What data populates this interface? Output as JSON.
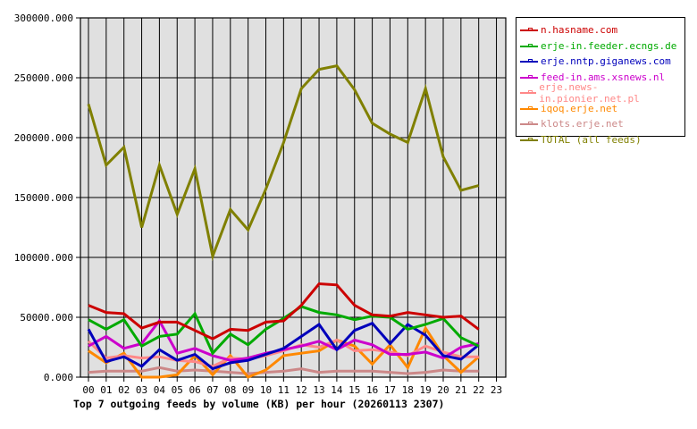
{
  "chart_data": {
    "type": "line",
    "title": "Top 7 outgoing feeds by volume (KB) per hour (20260113 2307)",
    "xlabel": "",
    "ylabel": "",
    "ylim": [
      0,
      300000
    ],
    "yticks": [
      "0.000",
      "50000.000",
      "100000.000",
      "150000.000",
      "200000.000",
      "250000.000",
      "300000.000"
    ],
    "categories": [
      "00",
      "01",
      "02",
      "03",
      "04",
      "05",
      "06",
      "07",
      "08",
      "09",
      "10",
      "11",
      "12",
      "13",
      "14",
      "15",
      "16",
      "17",
      "18",
      "19",
      "20",
      "21",
      "22",
      "23"
    ],
    "grid": true,
    "legend_position": "right",
    "series": [
      {
        "name": "n.hasname.com",
        "color": "#cc0000",
        "values": [
          60000,
          54000,
          53000,
          41000,
          46000,
          46000,
          39000,
          32000,
          40000,
          39000,
          46000,
          47000,
          60000,
          78000,
          77000,
          60000,
          52000,
          51000,
          54000,
          52000,
          50000,
          51000,
          40000
        ]
      },
      {
        "name": "erje-in.feeder.ecngs.de",
        "color": "#00aa00",
        "values": [
          48000,
          40000,
          48000,
          26000,
          34000,
          36000,
          53000,
          20000,
          36000,
          27000,
          40000,
          49000,
          59000,
          54000,
          52000,
          48000,
          51000,
          50000,
          40000,
          44000,
          49000,
          33000,
          26000
        ]
      },
      {
        "name": "erje.nntp.giganews.com",
        "color": "#0000bb",
        "values": [
          40000,
          13000,
          17000,
          9000,
          23000,
          14000,
          19000,
          7000,
          12000,
          14000,
          19000,
          24000,
          34000,
          44000,
          23000,
          39000,
          45000,
          28000,
          44000,
          35000,
          18000,
          15000,
          27000
        ]
      },
      {
        "name": "feed-in.ams.xsnews.nl",
        "color": "#cc00cc",
        "values": [
          26000,
          34000,
          24000,
          28000,
          47000,
          20000,
          24000,
          18000,
          14000,
          16000,
          20000,
          23000,
          26000,
          30000,
          23000,
          31000,
          27000,
          19000,
          19000,
          21000,
          16000,
          25000,
          28000
        ]
      },
      {
        "name": "erje.news-in.pionier.net.pl",
        "color": "#ff8888",
        "values": [
          30000,
          16000,
          18000,
          16000,
          17000,
          14000,
          13000,
          9000,
          16000,
          15000,
          18000,
          22000,
          27000,
          25000,
          31000,
          22000,
          23000,
          21000,
          18000,
          26000,
          21000,
          17000,
          17000
        ]
      },
      {
        "name": "iqoq.erje.net",
        "color": "#ff8800",
        "values": [
          22000,
          12000,
          20000,
          0,
          0,
          2000,
          18000,
          2000,
          18000,
          0,
          6000,
          18000,
          20000,
          22000,
          31000,
          26000,
          11000,
          27000,
          8000,
          41000,
          18000,
          4000,
          17000
        ]
      },
      {
        "name": "klots.erje.net",
        "color": "#cc8888",
        "values": [
          4000,
          5000,
          5000,
          5000,
          8000,
          5000,
          6000,
          5000,
          4000,
          3000,
          4000,
          5000,
          7000,
          4000,
          5000,
          5000,
          5000,
          4000,
          3000,
          4000,
          6000,
          5000,
          5000
        ]
      },
      {
        "name": "TOTAL (all feeds)",
        "color": "#808000",
        "values": [
          228000,
          177000,
          192000,
          125000,
          177000,
          136000,
          174000,
          101000,
          140000,
          123000,
          157000,
          196000,
          241000,
          257000,
          260000,
          240000,
          212000,
          203000,
          196000,
          241000,
          184000,
          156000,
          160000
        ]
      }
    ]
  },
  "legend": {
    "items": [
      {
        "label": "n.hasname.com",
        "color": "#cc0000"
      },
      {
        "label": "erje-in.feeder.ecngs.de",
        "color": "#00aa00"
      },
      {
        "label": "erje.nntp.giganews.com",
        "color": "#0000bb"
      },
      {
        "label": "feed-in.ams.xsnews.nl",
        "color": "#cc00cc"
      },
      {
        "label": "erje.news-in.pionier.net.pl",
        "color": "#ff8888"
      },
      {
        "label": "iqoq.erje.net",
        "color": "#ff8800"
      },
      {
        "label": "klots.erje.net",
        "color": "#cc8888"
      },
      {
        "label": "TOTAL (all feeds)",
        "color": "#808000"
      }
    ]
  },
  "colors": {
    "plot_background": "#e0e0e0",
    "grid": "#000000",
    "page_background": "#ffffff"
  }
}
